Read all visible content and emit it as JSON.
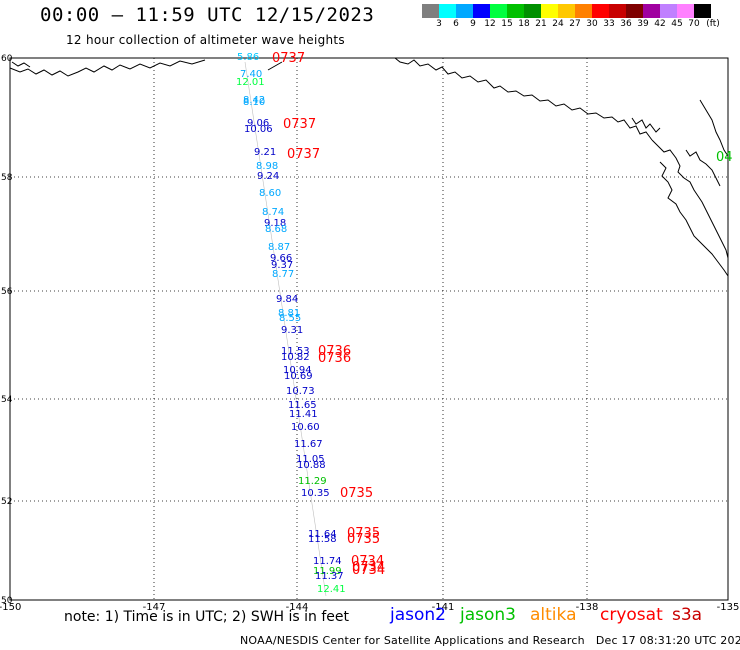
{
  "header": {
    "title": "00:00 – 11:59 UTC 12/15/2023",
    "subtitle": "12 hour collection of altimeter wave heights"
  },
  "legend": {
    "colors": [
      "#7f7f7f",
      "#00ffff",
      "#00a8ff",
      "#0000ff",
      "#00ff40",
      "#00c000",
      "#009000",
      "#ffff00",
      "#ffc800",
      "#ff8000",
      "#ff0000",
      "#c80000",
      "#7f0000",
      "#a000a0",
      "#c080ff",
      "#ff80ff",
      "#000000"
    ],
    "labels": [
      "3",
      "6",
      "9",
      "12",
      "15",
      "18",
      "21",
      "24",
      "27",
      "30",
      "33",
      "36",
      "39",
      "42",
      "45",
      "70",
      "(ft)"
    ]
  },
  "map": {
    "lon_ticks": [
      "-150",
      "-147",
      "-144",
      "-141",
      "-138",
      "-135"
    ],
    "lat_ticks": [
      "60",
      "58",
      "56",
      "54",
      "52",
      "50"
    ],
    "wave_heights": [
      {
        "text": "5.86",
        "color": "#00c8ff"
      },
      {
        "text": "7.40",
        "color": "#00a8ff"
      },
      {
        "text": "12.01",
        "color": "#00ff40"
      },
      {
        "text": "8.42",
        "color": "#00a8ff"
      },
      {
        "text": "8.10",
        "color": "#00a8ff"
      },
      {
        "text": "9.06",
        "color": "#0000c8"
      },
      {
        "text": "10.06",
        "color": "#0000c8"
      },
      {
        "text": "9.21",
        "color": "#0000c8"
      },
      {
        "text": "8.98",
        "color": "#00a8ff"
      },
      {
        "text": "9.24",
        "color": "#0000c8"
      },
      {
        "text": "8.60",
        "color": "#00a8ff"
      },
      {
        "text": "8.74",
        "color": "#00a8ff"
      },
      {
        "text": "9.18",
        "color": "#0000c8"
      },
      {
        "text": "8.68",
        "color": "#00a8ff"
      },
      {
        "text": "8.87",
        "color": "#00a8ff"
      },
      {
        "text": "9.66",
        "color": "#0000c8"
      },
      {
        "text": "9.37",
        "color": "#0000c8"
      },
      {
        "text": "8.77",
        "color": "#00a8ff"
      },
      {
        "text": "9.84",
        "color": "#0000c8"
      },
      {
        "text": "8.81",
        "color": "#00a8ff"
      },
      {
        "text": "8.55",
        "color": "#00a8ff"
      },
      {
        "text": "9.31",
        "color": "#0000c8"
      },
      {
        "text": "11.53",
        "color": "#0000c8"
      },
      {
        "text": "10.82",
        "color": "#0000c8"
      },
      {
        "text": "10.94",
        "color": "#0000c8"
      },
      {
        "text": "10.69",
        "color": "#0000c8"
      },
      {
        "text": "10.73",
        "color": "#0000c8"
      },
      {
        "text": "11.65",
        "color": "#0000c8"
      },
      {
        "text": "11.41",
        "color": "#0000c8"
      },
      {
        "text": "10.60",
        "color": "#0000c8"
      },
      {
        "text": "11.67",
        "color": "#0000c8"
      },
      {
        "text": "11.05",
        "color": "#0000c8"
      },
      {
        "text": "10.88",
        "color": "#0000c8"
      },
      {
        "text": "11.29",
        "color": "#00c000"
      },
      {
        "text": "10.35",
        "color": "#0000c8"
      },
      {
        "text": "11.64",
        "color": "#0000c8"
      },
      {
        "text": "11.58",
        "color": "#0000c8"
      },
      {
        "text": "11.74",
        "color": "#0000c8"
      },
      {
        "text": "11.99",
        "color": "#00c000"
      },
      {
        "text": "11.37",
        "color": "#0000c8"
      },
      {
        "text": "12.41",
        "color": "#00ff40"
      }
    ],
    "time_labels": [
      {
        "text": "0737",
        "color": "#ff0000"
      },
      {
        "text": "0737",
        "color": "#ff0000"
      },
      {
        "text": "0737",
        "color": "#ff0000"
      },
      {
        "text": "0736",
        "color": "#ff0000"
      },
      {
        "text": "0736",
        "color": "#ff0000"
      },
      {
        "text": "0735",
        "color": "#ff0000"
      },
      {
        "text": "0735",
        "color": "#ff0000"
      },
      {
        "text": "0735",
        "color": "#ff0000"
      },
      {
        "text": "0734",
        "color": "#ff0000"
      },
      {
        "text": "0734",
        "color": "#ff0000"
      },
      {
        "text": "0734",
        "color": "#ff0000"
      },
      {
        "text": "04",
        "color": "#00c000"
      }
    ]
  },
  "footer": {
    "note": "note: 1) Time is in UTC; 2) SWH is in feet",
    "satellites": [
      {
        "name": "jason2",
        "color": "#0000ff"
      },
      {
        "name": "jason3",
        "color": "#00c000"
      },
      {
        "name": "altika",
        "color": "#ff8c00"
      },
      {
        "name": "cryosat",
        "color": "#ff0000"
      },
      {
        "name": "s3a",
        "color": "#c80000"
      }
    ],
    "credit": "NOAA/NESDIS Center for Satellite Applications and Research   Dec 17 08:31:20 UTC 2023"
  }
}
